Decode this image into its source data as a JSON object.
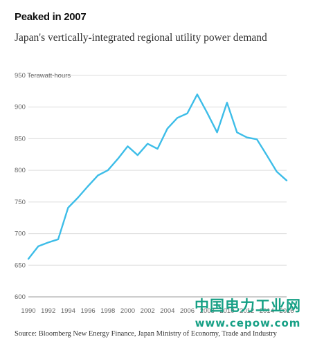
{
  "title": "Peaked in 2007",
  "subtitle": "Japan's vertically-integrated regional utility power demand",
  "source": "Source: Bloomberg New Energy Finance, Japan Ministry of Economy, Trade and Industry",
  "watermark": {
    "chinese": "中国电力工业网",
    "url": "www.cepow.com"
  },
  "colors": {
    "line": "#3dbde8",
    "grid": "#dddddd"
  },
  "chart_data": {
    "type": "line",
    "title": "Peaked in 2007",
    "ylabel": "Terawatt-hours",
    "xlabel": "",
    "ylim": [
      600,
      950
    ],
    "yticks": [
      600,
      650,
      700,
      750,
      800,
      850,
      900,
      950
    ],
    "xticks": [
      "1990",
      "1992",
      "1994",
      "1996",
      "1998",
      "2000",
      "2002",
      "2004",
      "2006",
      "2008",
      "2010",
      "2012",
      "2014",
      "2016"
    ],
    "grid": true,
    "x": [
      1990,
      1991,
      1992,
      1993,
      1994,
      1995,
      1996,
      1997,
      1998,
      1999,
      2000,
      2001,
      2002,
      2003,
      2004,
      2005,
      2006,
      2007,
      2008,
      2009,
      2010,
      2011,
      2012,
      2013,
      2014,
      2015,
      2016
    ],
    "values": [
      660,
      680,
      686,
      691,
      741,
      757,
      775,
      792,
      800,
      818,
      838,
      824,
      842,
      834,
      866,
      883,
      890,
      920,
      891,
      860,
      907,
      860,
      852,
      849,
      824,
      798,
      784
    ]
  }
}
